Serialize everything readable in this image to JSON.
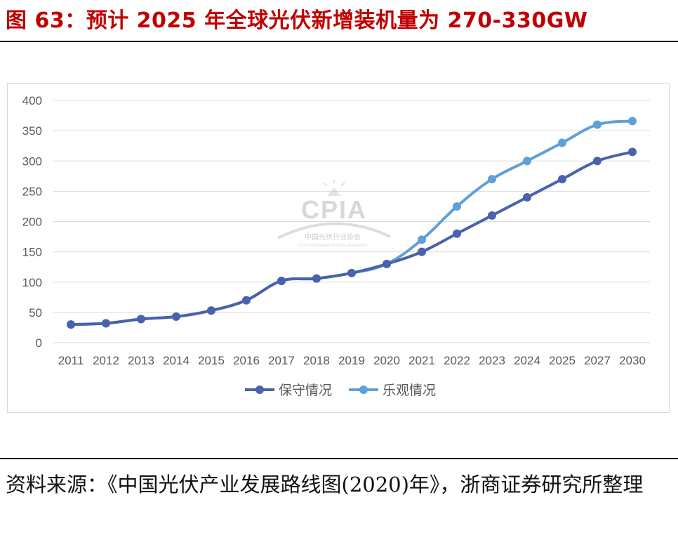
{
  "header": {
    "figure_title": "图 63：预计 2025 年全球光伏新增装机量为 270-330GW"
  },
  "watermark": {
    "logo_text": "CPIA",
    "org_name": "中国光伏行业协会",
    "org_name_en": "China Photovoltaic Industry Association"
  },
  "chart_data": {
    "type": "line",
    "title": "",
    "xlabel": "",
    "ylabel": "",
    "categories": [
      "2011",
      "2012",
      "2013",
      "2014",
      "2015",
      "2016",
      "2017",
      "2018",
      "2019",
      "2020",
      "2021",
      "2022",
      "2023",
      "2024",
      "2025",
      "2027",
      "2030"
    ],
    "ylim": [
      0,
      400
    ],
    "yticks": [
      "0",
      "50",
      "100",
      "150",
      "200",
      "250",
      "300",
      "350",
      "400"
    ],
    "grid": true,
    "legend_position": "bottom-center",
    "series": [
      {
        "name": "保守情况",
        "color": "#4a62ac",
        "values": [
          30,
          32,
          39,
          43,
          53,
          70,
          102,
          106,
          115,
          130,
          150,
          180,
          210,
          240,
          270,
          300,
          315
        ]
      },
      {
        "name": "乐观情况",
        "color": "#5fa0d8",
        "values": [
          30,
          32,
          39,
          43,
          53,
          70,
          102,
          106,
          115,
          130,
          170,
          225,
          270,
          300,
          330,
          360,
          366
        ]
      }
    ]
  },
  "footer": {
    "source_text": "资料来源：《中国光伏产业发展路线图(2020)年》，浙商证券研究所整理"
  }
}
